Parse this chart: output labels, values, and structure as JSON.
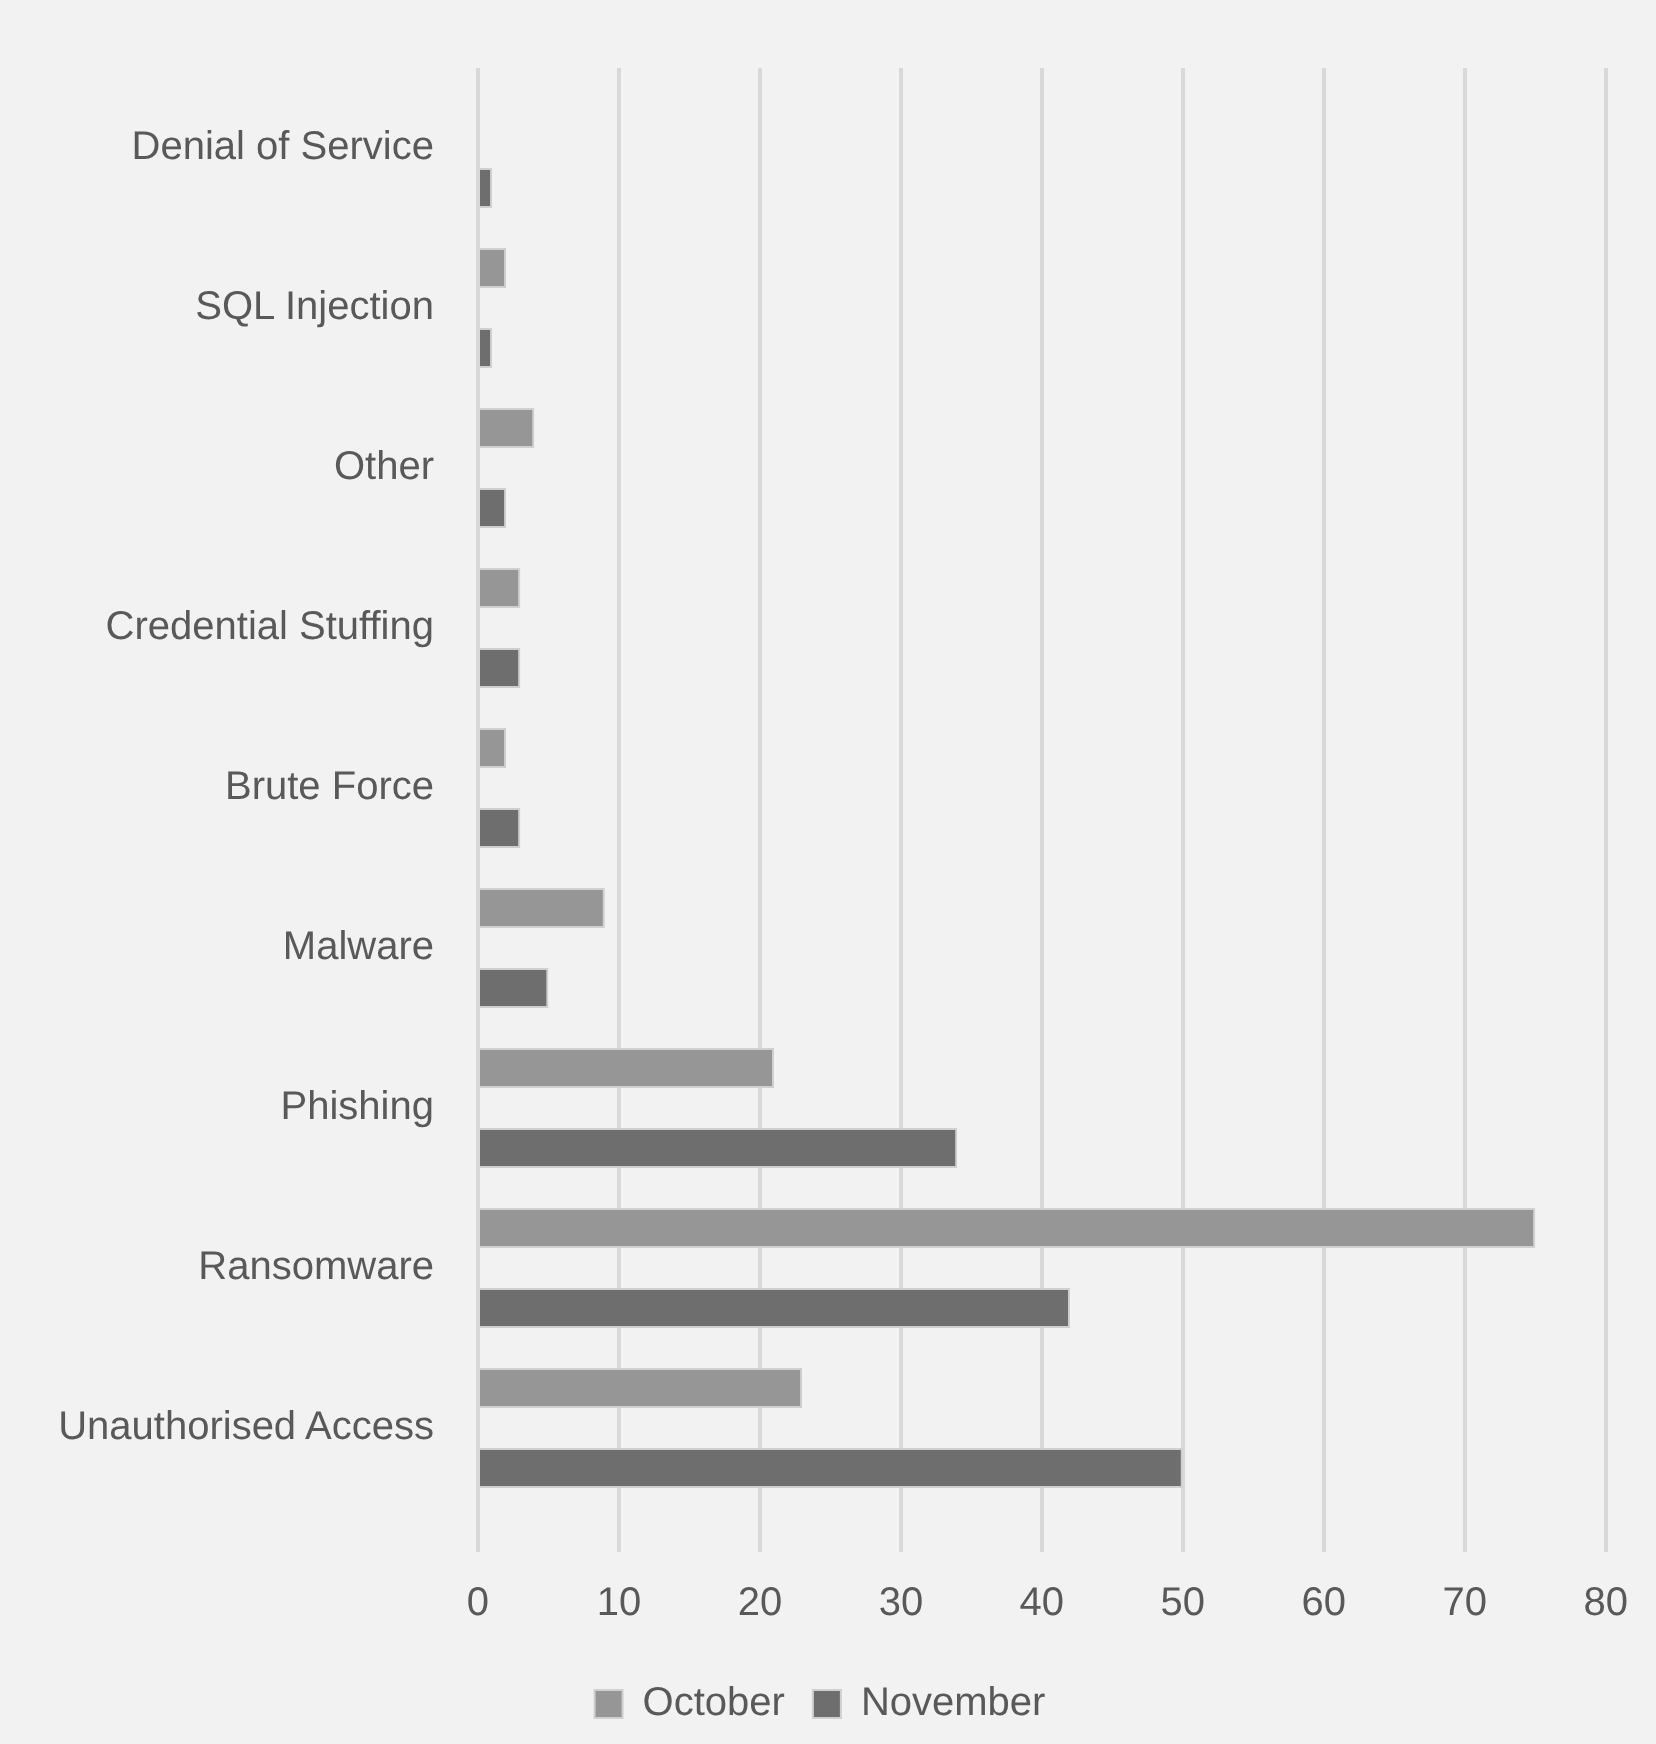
{
  "chart_data": {
    "type": "bar",
    "orientation": "horizontal",
    "categories": [
      "Denial of Service",
      "SQL Injection",
      "Other",
      "Credential Stuffing",
      "Brute Force",
      "Malware",
      "Phishing",
      "Ransomware",
      "Unauthorised Access"
    ],
    "series": [
      {
        "name": "October",
        "color": "#969696",
        "values": [
          0,
          2,
          4,
          3,
          2,
          9,
          21,
          75,
          23
        ]
      },
      {
        "name": "November",
        "color": "#6e6e6e",
        "values": [
          1,
          1,
          2,
          3,
          3,
          5,
          34,
          42,
          50
        ]
      }
    ],
    "xlim": [
      0,
      80
    ],
    "xticks": [
      0,
      10,
      20,
      30,
      40,
      50,
      60,
      70,
      80
    ],
    "grid": "x",
    "legend": "bottom"
  }
}
